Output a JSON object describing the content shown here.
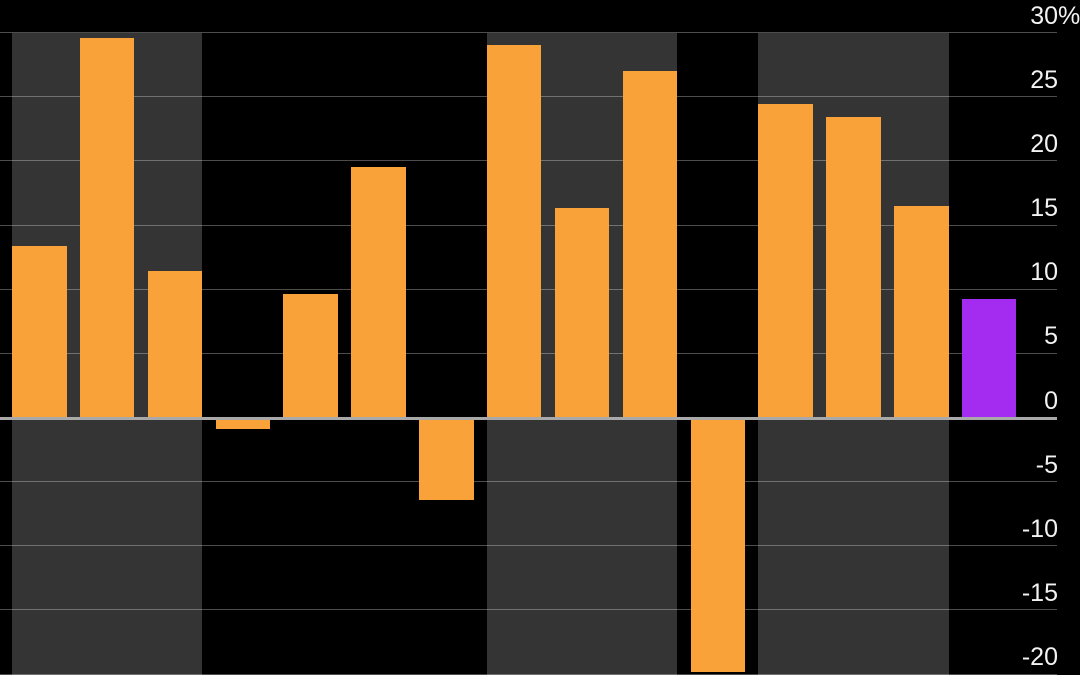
{
  "chart_data": {
    "type": "bar",
    "x_axis": {
      "tick_labels_visible": false
    },
    "y_axis": {
      "side": "right",
      "visible_range": [
        -20,
        30
      ],
      "tick_step": 5,
      "gridlines": true,
      "ticks": [
        {
          "label": "30",
          "suffix": "%",
          "value": 30
        },
        {
          "label": "25",
          "value": 25
        },
        {
          "label": "20",
          "value": 20
        },
        {
          "label": "15",
          "value": 15
        },
        {
          "label": "10",
          "value": 10
        },
        {
          "label": "5",
          "value": 5
        },
        {
          "label": "0",
          "value": 0
        },
        {
          "label": "-5",
          "value": -5
        },
        {
          "label": "-10",
          "value": -10
        },
        {
          "label": "-15",
          "value": -15
        },
        {
          "label": "-20",
          "value": -20
        }
      ]
    },
    "bars": [
      {
        "value": 13.4,
        "color": "orange"
      },
      {
        "value": 29.6,
        "color": "orange"
      },
      {
        "value": 11.4,
        "color": "orange"
      },
      {
        "value": -0.8,
        "color": "orange"
      },
      {
        "value": 9.6,
        "color": "orange"
      },
      {
        "value": 19.5,
        "color": "orange"
      },
      {
        "value": -6.3,
        "color": "orange"
      },
      {
        "value": 29.0,
        "color": "orange"
      },
      {
        "value": 16.3,
        "color": "orange"
      },
      {
        "value": 27.0,
        "color": "orange"
      },
      {
        "value": -19.7,
        "color": "orange"
      },
      {
        "value": 24.4,
        "color": "orange"
      },
      {
        "value": 23.4,
        "color": "orange"
      },
      {
        "value": 16.5,
        "color": "orange"
      },
      {
        "value": 9.2,
        "color": "purple"
      }
    ],
    "highlight_band_bar_ranges": [
      [
        0,
        2
      ],
      [
        7,
        9
      ],
      [
        11,
        13
      ]
    ],
    "legend": {
      "visible": false
    },
    "colors": {
      "bar_orange": "#F9A23A",
      "bar_purple": "#A42CF0",
      "background": "#000000",
      "band": "#343434",
      "gridline": "rgba(255,255,255,0.30)",
      "zero_line": "#A9A9A9",
      "tick_label": "#F2F2F2"
    }
  }
}
